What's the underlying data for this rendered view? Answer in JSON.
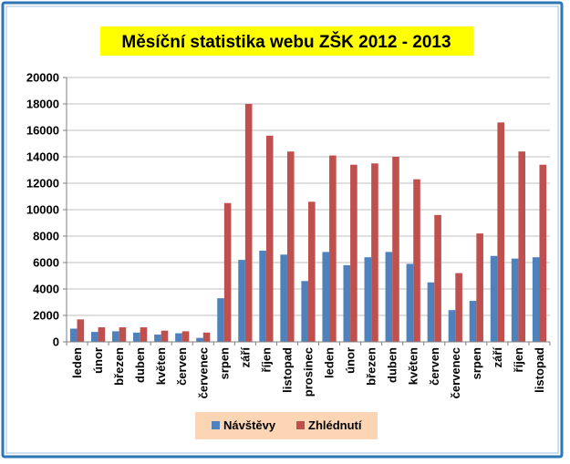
{
  "chart_data": {
    "type": "bar",
    "title": "Měsíční statistika webu ZŠK 2012 - 2013",
    "xlabel": "",
    "ylabel": "",
    "ylim": [
      0,
      20000
    ],
    "yticks": [
      "0",
      "2000",
      "4000",
      "6000",
      "8000",
      "10000",
      "12000",
      "14000",
      "16000",
      "18000",
      "20000"
    ],
    "grid": true,
    "legend_position": "bottom",
    "categories": [
      "leden",
      "únor",
      "březen",
      "duben",
      "květen",
      "červen",
      "červenec",
      "srpen",
      "září",
      "říjen",
      "listopad",
      "prosinec",
      "leden",
      "únor",
      "březen",
      "duben",
      "květen",
      "červen",
      "červenec",
      "srpen",
      "září",
      "říjen",
      "listopad"
    ],
    "series": [
      {
        "name": "Návštěvy",
        "color": "#4F81BD",
        "values": [
          1000,
          750,
          800,
          700,
          550,
          650,
          300,
          3300,
          6200,
          6900,
          6600,
          4600,
          6800,
          5800,
          6400,
          6800,
          5900,
          4500,
          2400,
          3100,
          6500,
          6300,
          6400
        ]
      },
      {
        "name": "Zhlédnutí",
        "color": "#C0504D",
        "values": [
          1700,
          1100,
          1100,
          1100,
          850,
          800,
          700,
          10500,
          18000,
          15600,
          14400,
          10600,
          14100,
          13400,
          13500,
          14000,
          12300,
          9600,
          5200,
          8200,
          16600,
          14400,
          13400
        ]
      }
    ],
    "colors": {
      "title_background": "#FFFF00",
      "legend_background": "#FCD5B5",
      "frame_border": "#2E75B6",
      "gridline": "#BFBFBF"
    }
  }
}
